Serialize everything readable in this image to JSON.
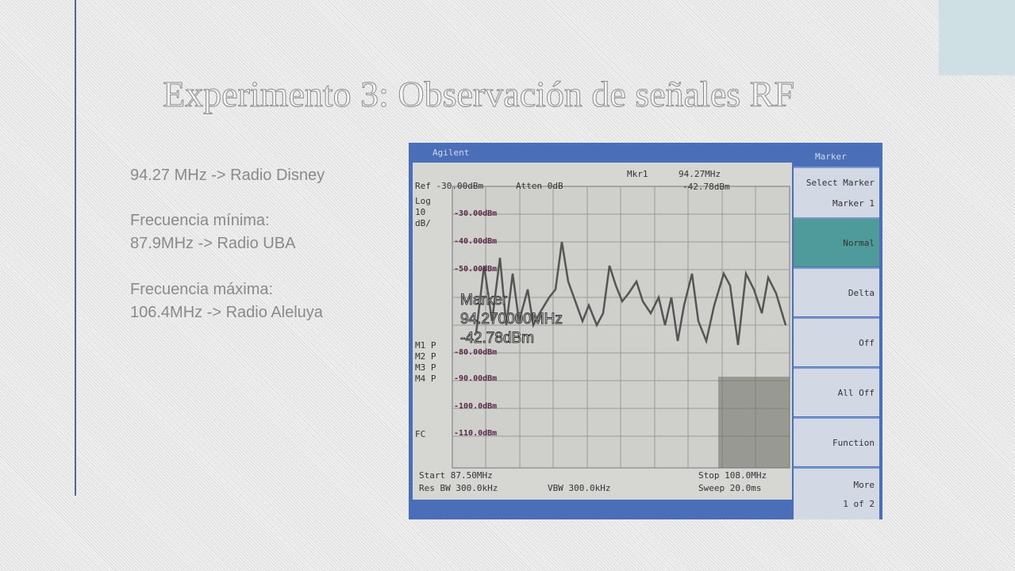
{
  "title": "Experimento 3: Observación de señales RF",
  "body": {
    "lines": [
      "94.27 MHz -> Radio Disney",
      "Frecuencia mínima:",
      "87.9MHz -> Radio UBA",
      "Frecuencia máxima:",
      "106.4MHz -> Radio Aleluya"
    ]
  },
  "photo": {
    "brand": "Agilent",
    "softkey_title": "Marker",
    "ref": "Ref -30.00dBm",
    "atten": "Atten 0dB",
    "scale": [
      "Log",
      "10",
      "dB/"
    ],
    "marker": {
      "label": "Mkr1",
      "freq": "94.27MHz",
      "level": "-42.78dBm"
    },
    "overlay": [
      "Marker",
      "94.270000MHz",
      "-42.78dBm"
    ],
    "ylabels": [
      "-30.00dBm",
      "-40.00dBm",
      "-50.00dBm",
      "-80.00dBm",
      "-90.00dBm",
      "-100.0dBm",
      "-110.0dBm"
    ],
    "side": [
      "M1 P",
      "M2 P",
      "M3 P",
      "M4 P",
      "FC"
    ],
    "softkeys": [
      "Select Marker",
      "Marker 1",
      "Normal",
      "Delta",
      "Off",
      "All Off",
      "Function",
      "More",
      "1 of 2"
    ],
    "footer": {
      "start": "Start 87.50MHz",
      "stop": "Stop 108.0MHz",
      "rbw": "Res BW 300.0kHz",
      "vbw": "VBW 300.0kHz",
      "sweep": "Sweep 20.0ms"
    }
  }
}
